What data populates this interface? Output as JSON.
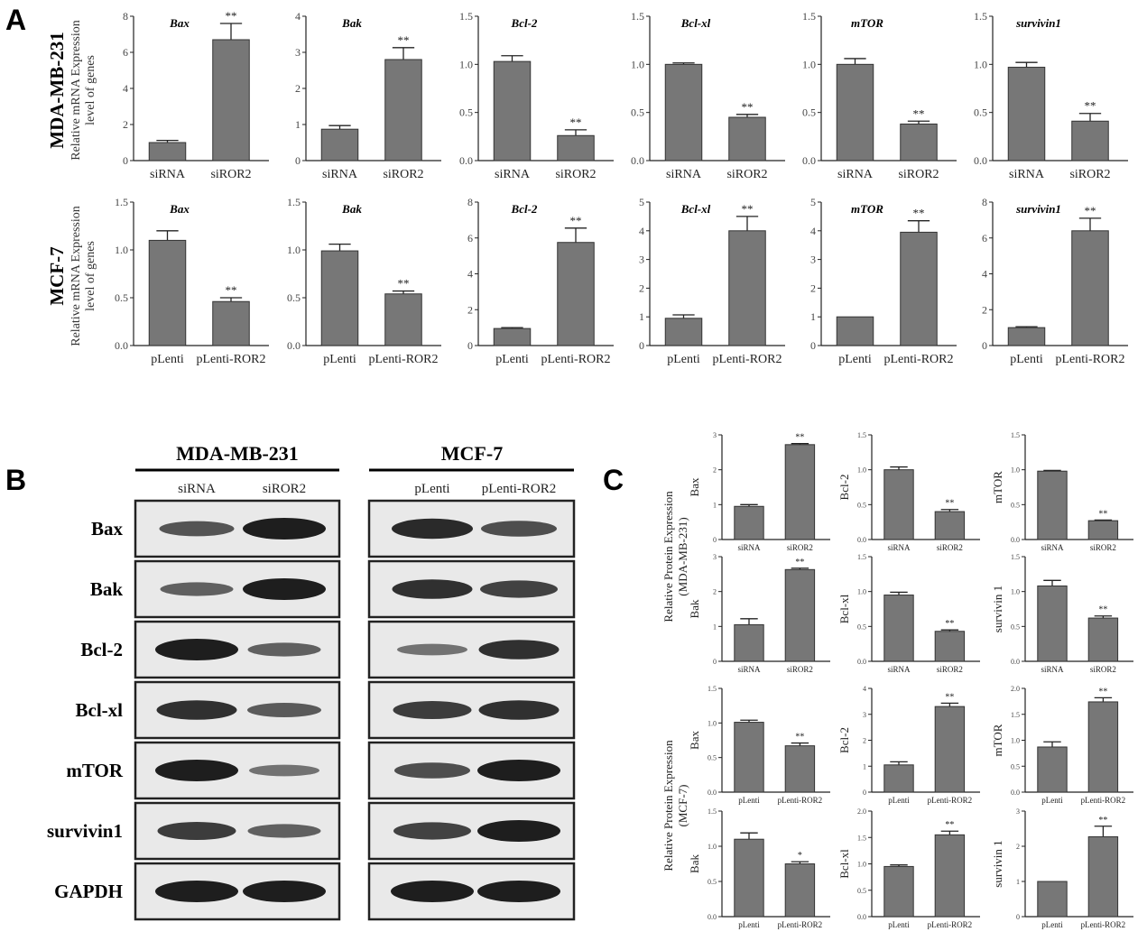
{
  "panel_labels": {
    "a": "A",
    "b": "B",
    "c": "C"
  },
  "panel_a": {
    "row_labels": [
      {
        "cell": "MDA-MB-231",
        "ylabel_line1": "Relative mRNA Expression",
        "ylabel_line2": "level of genes"
      },
      {
        "cell": "MCF-7",
        "ylabel_line1": "Relative mRNA Expression",
        "ylabel_line2": "level of genes"
      }
    ]
  },
  "panel_b": {
    "groups": [
      {
        "title": "MDA-MB-231",
        "lanes": [
          "siRNA",
          "siROR2"
        ]
      },
      {
        "title": "MCF-7",
        "lanes": [
          "pLenti",
          "pLenti-ROR2"
        ]
      }
    ],
    "proteins": [
      "Bax",
      "Bak",
      "Bcl-2",
      "Bcl-xl",
      "mTOR",
      "survivin1",
      "GAPDH"
    ],
    "band_intensity": [
      [
        [
          0.55,
          1.0
        ],
        [
          0.9,
          0.6
        ]
      ],
      [
        [
          0.45,
          1.0
        ],
        [
          0.85,
          0.7
        ]
      ],
      [
        [
          1.0,
          0.45
        ],
        [
          0.3,
          0.85
        ]
      ],
      [
        [
          0.85,
          0.5
        ],
        [
          0.75,
          0.85
        ]
      ],
      [
        [
          1.0,
          0.3
        ],
        [
          0.6,
          1.0
        ]
      ],
      [
        [
          0.75,
          0.45
        ],
        [
          0.7,
          1.0
        ]
      ],
      [
        [
          1.0,
          1.0
        ],
        [
          1.0,
          1.0
        ]
      ]
    ]
  },
  "panel_c": {
    "group_labels": [
      {
        "line1": "Relative Protein Expression",
        "line2": "(MDA-MB-231)"
      },
      {
        "line1": "Relative Protein Expression",
        "line2": "(MCF-7)"
      }
    ]
  },
  "chart_data": [
    {
      "id": "a1",
      "type": "bar",
      "title": "Bax",
      "categories": [
        "siRNA",
        "siROR2"
      ],
      "values": [
        1.0,
        6.7
      ],
      "errors": [
        0.12,
        0.9
      ],
      "significance": [
        "",
        "**"
      ],
      "ylim": [
        0,
        8
      ],
      "yticks": [
        0,
        2,
        4,
        6,
        8
      ],
      "tick_labels": [
        "0",
        "2",
        "4",
        "6",
        "8"
      ]
    },
    {
      "id": "a2",
      "type": "bar",
      "title": "Bak",
      "categories": [
        "siRNA",
        "siROR2"
      ],
      "values": [
        0.87,
        2.8
      ],
      "errors": [
        0.1,
        0.33
      ],
      "significance": [
        "",
        "**"
      ],
      "ylim": [
        0,
        4
      ],
      "yticks": [
        0,
        1,
        2,
        3,
        4
      ],
      "tick_labels": [
        "0",
        "1",
        "2",
        "3",
        "4"
      ]
    },
    {
      "id": "a3",
      "type": "bar",
      "title": "Bcl-2",
      "categories": [
        "siRNA",
        "siROR2"
      ],
      "values": [
        1.03,
        0.26
      ],
      "errors": [
        0.06,
        0.06
      ],
      "significance": [
        "",
        "**"
      ],
      "ylim": [
        0,
        1.5
      ],
      "yticks": [
        0,
        0.5,
        1.0,
        1.5
      ],
      "tick_labels": [
        "0.0",
        "0.5",
        "1.0",
        "1.5"
      ]
    },
    {
      "id": "a4",
      "type": "bar",
      "title": "Bcl-xl",
      "categories": [
        "siRNA",
        "siROR2"
      ],
      "values": [
        1.0,
        0.45
      ],
      "errors": [
        0.015,
        0.03
      ],
      "significance": [
        "",
        "**"
      ],
      "ylim": [
        0,
        1.5
      ],
      "yticks": [
        0,
        0.5,
        1.0,
        1.5
      ],
      "tick_labels": [
        "0.0",
        "0.5",
        "1.0",
        "1.5"
      ]
    },
    {
      "id": "a5",
      "type": "bar",
      "title": "mTOR",
      "categories": [
        "siRNA",
        "siROR2"
      ],
      "values": [
        1.0,
        0.38
      ],
      "errors": [
        0.06,
        0.03
      ],
      "significance": [
        "",
        "**"
      ],
      "ylim": [
        0,
        1.5
      ],
      "yticks": [
        0,
        0.5,
        1.0,
        1.5
      ],
      "tick_labels": [
        "0.0",
        "0.5",
        "1.0",
        "1.5"
      ]
    },
    {
      "id": "a6",
      "type": "bar",
      "title": "survivin1",
      "categories": [
        "siRNA",
        "siROR2"
      ],
      "values": [
        0.97,
        0.41
      ],
      "errors": [
        0.05,
        0.08
      ],
      "significance": [
        "",
        "**"
      ],
      "ylim": [
        0,
        1.5
      ],
      "yticks": [
        0,
        0.5,
        1.0,
        1.5
      ],
      "tick_labels": [
        "0.0",
        "0.5",
        "1.0",
        "1.5"
      ]
    },
    {
      "id": "a7",
      "type": "bar",
      "title": "Bax",
      "categories": [
        "pLenti",
        "pLenti-ROR2"
      ],
      "values": [
        1.1,
        0.46
      ],
      "errors": [
        0.1,
        0.04
      ],
      "significance": [
        "",
        "**"
      ],
      "ylim": [
        0,
        1.5
      ],
      "yticks": [
        0,
        0.5,
        1.0,
        1.5
      ],
      "tick_labels": [
        "0.0",
        "0.5",
        "1.0",
        "1.5"
      ]
    },
    {
      "id": "a8",
      "type": "bar",
      "title": "Bak",
      "categories": [
        "pLenti",
        "pLenti-ROR2"
      ],
      "values": [
        0.99,
        0.54
      ],
      "errors": [
        0.07,
        0.03
      ],
      "significance": [
        "",
        "**"
      ],
      "ylim": [
        0,
        1.5
      ],
      "yticks": [
        0,
        0.5,
        1.0,
        1.5
      ],
      "tick_labels": [
        "0.0",
        "0.5",
        "1.0",
        "1.5"
      ]
    },
    {
      "id": "a9",
      "type": "bar",
      "title": "Bcl-2",
      "categories": [
        "pLenti",
        "pLenti-ROR2"
      ],
      "values": [
        0.95,
        5.75
      ],
      "errors": [
        0.05,
        0.8
      ],
      "significance": [
        "",
        "**"
      ],
      "ylim": [
        0,
        8
      ],
      "yticks": [
        0,
        2,
        4,
        6,
        8
      ],
      "tick_labels": [
        "0",
        "2",
        "4",
        "6",
        "8"
      ]
    },
    {
      "id": "a10",
      "type": "bar",
      "title": "Bcl-xl",
      "categories": [
        "pLenti",
        "pLenti-ROR2"
      ],
      "values": [
        0.95,
        4.0
      ],
      "errors": [
        0.12,
        0.5
      ],
      "significance": [
        "",
        "**"
      ],
      "ylim": [
        0,
        5
      ],
      "yticks": [
        0,
        1,
        2,
        3,
        4,
        5
      ],
      "tick_labels": [
        "0",
        "1",
        "2",
        "3",
        "4",
        "5"
      ]
    },
    {
      "id": "a11",
      "type": "bar",
      "title": "mTOR",
      "categories": [
        "pLenti",
        "pLenti-ROR2"
      ],
      "values": [
        1.0,
        3.95
      ],
      "errors": [
        0.0,
        0.4
      ],
      "significance": [
        "",
        "**"
      ],
      "ylim": [
        0,
        5
      ],
      "yticks": [
        0,
        1,
        2,
        3,
        4,
        5
      ],
      "tick_labels": [
        "0",
        "1",
        "2",
        "3",
        "4",
        "5"
      ]
    },
    {
      "id": "a12",
      "type": "bar",
      "title": "survivin1",
      "categories": [
        "pLenti",
        "pLenti-ROR2"
      ],
      "values": [
        1.0,
        6.4
      ],
      "errors": [
        0.05,
        0.7
      ],
      "significance": [
        "",
        "**"
      ],
      "ylim": [
        0,
        8
      ],
      "yticks": [
        0,
        2,
        4,
        6,
        8
      ],
      "tick_labels": [
        "0",
        "2",
        "4",
        "6",
        "8"
      ]
    },
    {
      "id": "c1",
      "type": "bar",
      "ylabel": "Bax",
      "categories": [
        "siRNA",
        "siROR2"
      ],
      "values": [
        0.95,
        2.72
      ],
      "errors": [
        0.05,
        0.03
      ],
      "significance": [
        "",
        "**"
      ],
      "ylim": [
        0,
        3
      ],
      "yticks": [
        0,
        1,
        2,
        3
      ],
      "tick_labels": [
        "0",
        "1",
        "2",
        "3"
      ]
    },
    {
      "id": "c2",
      "type": "bar",
      "ylabel": "Bcl-2",
      "categories": [
        "siRNA",
        "siROR2"
      ],
      "values": [
        1.0,
        0.4
      ],
      "errors": [
        0.04,
        0.03
      ],
      "significance": [
        "",
        "**"
      ],
      "ylim": [
        0,
        1.5
      ],
      "yticks": [
        0,
        0.5,
        1.0,
        1.5
      ],
      "tick_labels": [
        "0.0",
        "0.5",
        "1.0",
        "1.5"
      ]
    },
    {
      "id": "c3",
      "type": "bar",
      "ylabel": "mTOR",
      "categories": [
        "siRNA",
        "siROR2"
      ],
      "values": [
        0.98,
        0.27
      ],
      "errors": [
        0.01,
        0.01
      ],
      "significance": [
        "",
        "**"
      ],
      "ylim": [
        0,
        1.5
      ],
      "yticks": [
        0,
        0.5,
        1.0,
        1.5
      ],
      "tick_labels": [
        "0.0",
        "0.5",
        "1.0",
        "1.5"
      ]
    },
    {
      "id": "c4",
      "type": "bar",
      "ylabel": "Bak",
      "categories": [
        "siRNA",
        "siROR2"
      ],
      "values": [
        1.05,
        2.63
      ],
      "errors": [
        0.17,
        0.04
      ],
      "significance": [
        "",
        "**"
      ],
      "ylim": [
        0,
        3
      ],
      "yticks": [
        0,
        1,
        2,
        3
      ],
      "tick_labels": [
        "0",
        "1",
        "2",
        "3"
      ]
    },
    {
      "id": "c5",
      "type": "bar",
      "ylabel": "Bcl-xl",
      "categories": [
        "siRNA",
        "siROR2"
      ],
      "values": [
        0.95,
        0.43
      ],
      "errors": [
        0.04,
        0.02
      ],
      "significance": [
        "",
        "**"
      ],
      "ylim": [
        0,
        1.5
      ],
      "yticks": [
        0,
        0.5,
        1.0,
        1.5
      ],
      "tick_labels": [
        "0.0",
        "0.5",
        "1.0",
        "1.5"
      ]
    },
    {
      "id": "c6",
      "type": "bar",
      "ylabel": "survivin 1",
      "categories": [
        "siRNA",
        "siROR2"
      ],
      "values": [
        1.08,
        0.62
      ],
      "errors": [
        0.08,
        0.03
      ],
      "significance": [
        "",
        "**"
      ],
      "ylim": [
        0,
        1.5
      ],
      "yticks": [
        0,
        0.5,
        1.0,
        1.5
      ],
      "tick_labels": [
        "0.0",
        "0.5",
        "1.0",
        "1.5"
      ]
    },
    {
      "id": "c7",
      "type": "bar",
      "ylabel": "Bax",
      "categories": [
        "pLenti",
        "pLenti-ROR2"
      ],
      "values": [
        1.01,
        0.67
      ],
      "errors": [
        0.03,
        0.04
      ],
      "significance": [
        "",
        "**"
      ],
      "ylim": [
        0,
        1.5
      ],
      "yticks": [
        0,
        0.5,
        1.0,
        1.5
      ],
      "tick_labels": [
        "0.0",
        "0.5",
        "1.0",
        "1.5"
      ]
    },
    {
      "id": "c8",
      "type": "bar",
      "ylabel": "Bcl-2",
      "categories": [
        "pLenti",
        "pLenti-ROR2"
      ],
      "values": [
        1.05,
        3.3
      ],
      "errors": [
        0.12,
        0.13
      ],
      "significance": [
        "",
        "**"
      ],
      "ylim": [
        0,
        4
      ],
      "yticks": [
        0,
        1,
        2,
        3,
        4
      ],
      "tick_labels": [
        "0",
        "1",
        "2",
        "3",
        "4"
      ]
    },
    {
      "id": "c9",
      "type": "bar",
      "ylabel": "mTOR",
      "categories": [
        "pLenti",
        "pLenti-ROR2"
      ],
      "values": [
        0.87,
        1.74
      ],
      "errors": [
        0.1,
        0.08
      ],
      "significance": [
        "",
        "**"
      ],
      "ylim": [
        0,
        2
      ],
      "yticks": [
        0,
        0.5,
        1.0,
        1.5,
        2.0
      ],
      "tick_labels": [
        "0.0",
        "0.5",
        "1.0",
        "1.5",
        "2.0"
      ]
    },
    {
      "id": "c10",
      "type": "bar",
      "ylabel": "Bak",
      "categories": [
        "pLenti",
        "pLenti-ROR2"
      ],
      "values": [
        1.1,
        0.75
      ],
      "errors": [
        0.09,
        0.03
      ],
      "significance": [
        "",
        "*"
      ],
      "ylim": [
        0,
        1.5
      ],
      "yticks": [
        0,
        0.5,
        1.0,
        1.5
      ],
      "tick_labels": [
        "0.0",
        "0.5",
        "1.0",
        "1.5"
      ]
    },
    {
      "id": "c11",
      "type": "bar",
      "ylabel": "Bcl-xl",
      "categories": [
        "pLenti",
        "pLenti-ROR2"
      ],
      "values": [
        0.95,
        1.55
      ],
      "errors": [
        0.03,
        0.07
      ],
      "significance": [
        "",
        "**"
      ],
      "ylim": [
        0,
        2
      ],
      "yticks": [
        0,
        0.5,
        1.0,
        1.5,
        2.0
      ],
      "tick_labels": [
        "0.0",
        "0.5",
        "1.0",
        "1.5",
        "2.0"
      ]
    },
    {
      "id": "c12",
      "type": "bar",
      "ylabel": "survivin 1",
      "categories": [
        "pLenti",
        "pLenti-ROR2"
      ],
      "values": [
        1.0,
        2.27
      ],
      "errors": [
        0.0,
        0.3
      ],
      "significance": [
        "",
        "**"
      ],
      "ylim": [
        0,
        3
      ],
      "yticks": [
        0,
        1,
        2,
        3
      ],
      "tick_labels": [
        "0",
        "1",
        "2",
        "3"
      ]
    }
  ]
}
